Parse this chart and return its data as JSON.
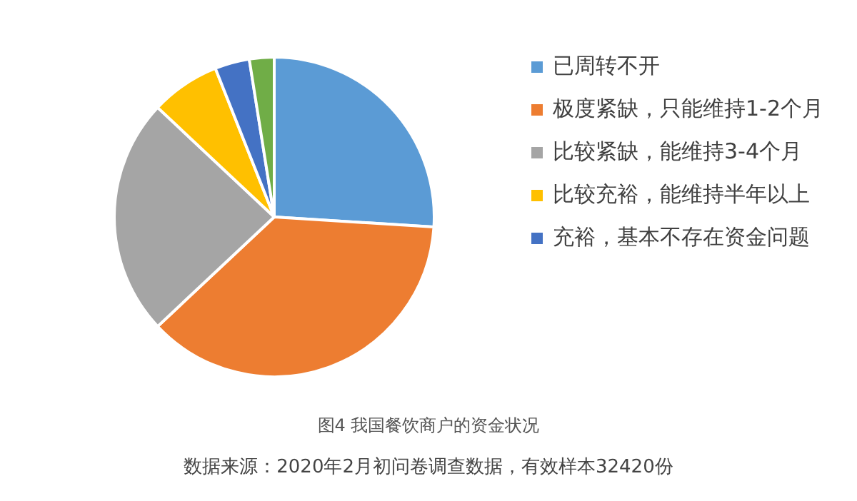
{
  "chart_data": {
    "type": "pie",
    "title": "图4  我国餐饮商户的资金状况",
    "categories": [
      "已周转不开",
      "极度紧缺，只能维持1-2个月",
      "比较紧缺，能维持3-4个月",
      "比较充裕，能维持半年以上",
      "充裕，基本不存在资金问题",
      null
    ],
    "values": [
      26,
      37,
      24,
      7,
      3.5,
      2.5
    ],
    "colors": [
      "#5b9bd5",
      "#ed7d31",
      "#a5a5a5",
      "#ffc000",
      "#4472c4",
      "#70ad47"
    ],
    "legend": "right",
    "annotations": [
      "数据来源：2020年2月初问卷调查数据，有效样本32420份"
    ]
  }
}
